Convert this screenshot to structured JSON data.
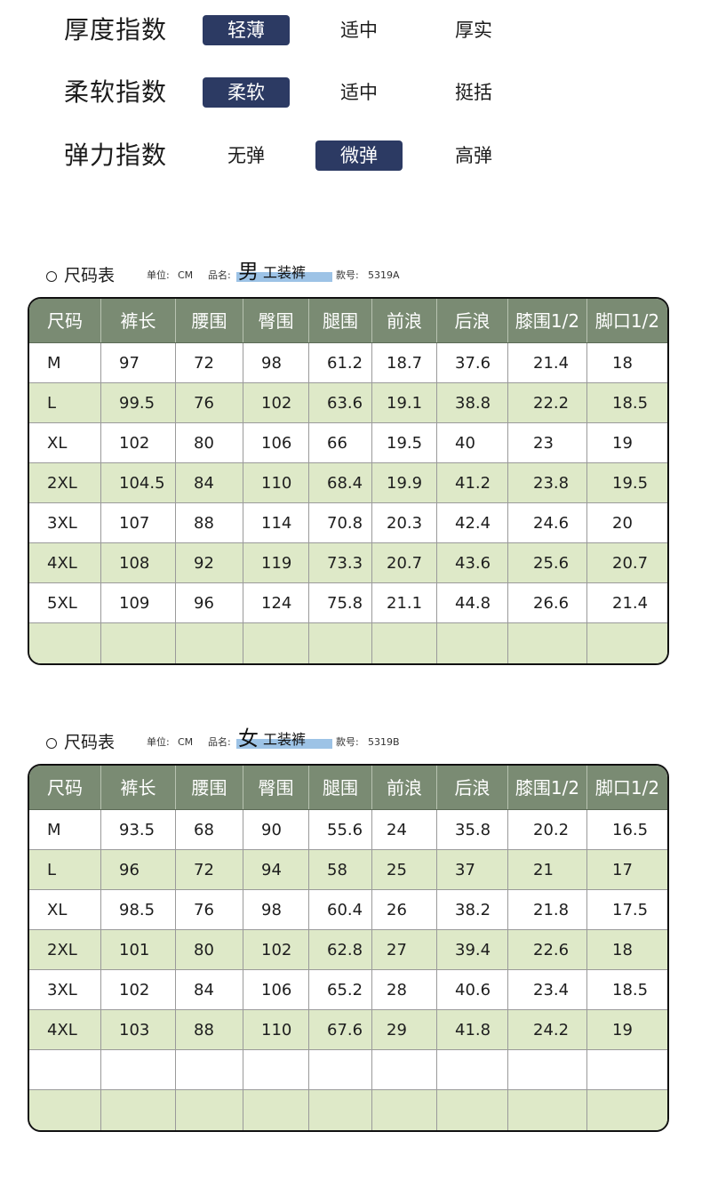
{
  "fabric_indices": [
    {
      "label": "厚度指数",
      "options": [
        "轻薄",
        "适中",
        "厚实"
      ],
      "selected": 0
    },
    {
      "label": "柔软指数",
      "options": [
        "柔软",
        "适中",
        "挺括"
      ],
      "selected": 0
    },
    {
      "label": "弹力指数",
      "options": [
        "无弹",
        "微弹",
        "高弹"
      ],
      "selected": 1
    }
  ],
  "columns": [
    "尺码",
    "裤长",
    "腰围",
    "臀围",
    "腿围",
    "前浪",
    "后浪",
    "膝围1/2",
    "脚口1/2"
  ],
  "tables": [
    {
      "title": "尺码表",
      "unit_label": "单位:",
      "unit": "CM",
      "name_label": "品名:",
      "gender": "男",
      "product_name": "工装裤",
      "code_label": "款号:",
      "code": "5319A",
      "rows": [
        [
          "M",
          "97",
          "72",
          "98",
          "61.2",
          "18.7",
          "37.6",
          "21.4",
          "18"
        ],
        [
          "L",
          "99.5",
          "76",
          "102",
          "63.6",
          "19.1",
          "38.8",
          "22.2",
          "18.5"
        ],
        [
          "XL",
          "102",
          "80",
          "106",
          "66",
          "19.5",
          "40",
          "23",
          "19"
        ],
        [
          "2XL",
          "104.5",
          "84",
          "110",
          "68.4",
          "19.9",
          "41.2",
          "23.8",
          "19.5"
        ],
        [
          "3XL",
          "107",
          "88",
          "114",
          "70.8",
          "20.3",
          "42.4",
          "24.6",
          "20"
        ],
        [
          "4XL",
          "108",
          "92",
          "119",
          "73.3",
          "20.7",
          "43.6",
          "25.6",
          "20.7"
        ],
        [
          "5XL",
          "109",
          "96",
          "124",
          "75.8",
          "21.1",
          "44.8",
          "26.6",
          "21.4"
        ],
        [
          "",
          "",
          "",
          "",
          "",
          "",
          "",
          "",
          ""
        ]
      ]
    },
    {
      "title": "尺码表",
      "unit_label": "单位:",
      "unit": "CM",
      "name_label": "品名:",
      "gender": "女",
      "product_name": "工装裤",
      "code_label": "款号:",
      "code": "5319B",
      "rows": [
        [
          "M",
          "93.5",
          "68",
          "90",
          "55.6",
          "24",
          "35.8",
          "20.2",
          "16.5"
        ],
        [
          "L",
          "96",
          "72",
          "94",
          "58",
          "25",
          "37",
          "21",
          "17"
        ],
        [
          "XL",
          "98.5",
          "76",
          "98",
          "60.4",
          "26",
          "38.2",
          "21.8",
          "17.5"
        ],
        [
          "2XL",
          "101",
          "80",
          "102",
          "62.8",
          "27",
          "39.4",
          "22.6",
          "18"
        ],
        [
          "3XL",
          "102",
          "84",
          "106",
          "65.2",
          "28",
          "40.6",
          "23.4",
          "18.5"
        ],
        [
          "4XL",
          "103",
          "88",
          "110",
          "67.6",
          "29",
          "41.8",
          "24.2",
          "19"
        ],
        [
          "",
          "",
          "",
          "",
          "",
          "",
          "",
          "",
          ""
        ],
        [
          "",
          "",
          "",
          "",
          "",
          "",
          "",
          "",
          ""
        ]
      ]
    }
  ],
  "colors": {
    "selected_option_bg": "#2c3a63",
    "table_header_bg": "#7a8b73",
    "stripe_bg": "#dee9c8",
    "name_highlight": "#9dc3e6"
  }
}
